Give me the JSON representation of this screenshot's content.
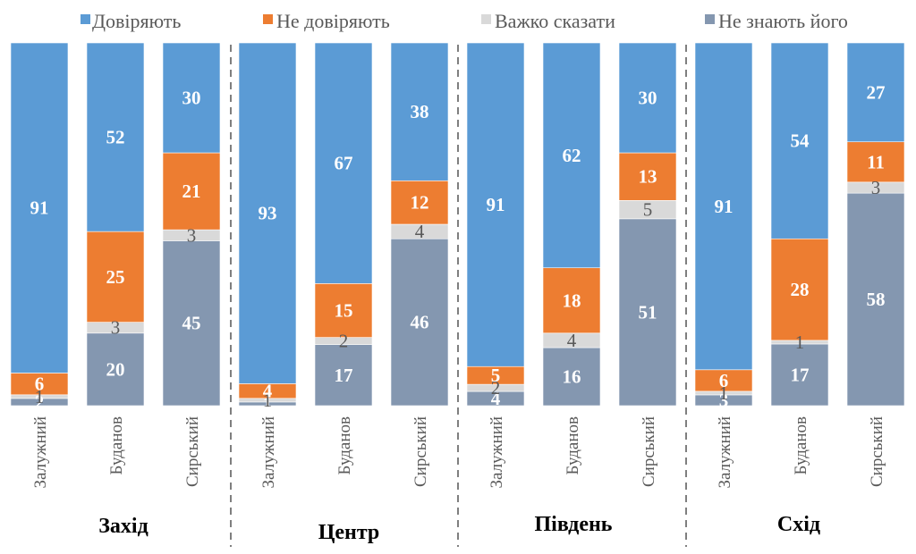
{
  "chart_data": {
    "type": "bar",
    "stacked": true,
    "stack_order_bottom_to_top": [
      "Не знають його",
      "Важко сказати",
      "Не довіряють",
      "Довіряють"
    ],
    "series": [
      {
        "name": "Довіряють",
        "color": "#5B9BD5"
      },
      {
        "name": "Не довіряють",
        "color": "#ED7D31"
      },
      {
        "name": "Важко сказати",
        "color": "#D9D9D9"
      },
      {
        "name": "Не знають його",
        "color": "#8497B0"
      }
    ],
    "legend_position": "top",
    "grid": false,
    "ylim": [
      0,
      100
    ],
    "groups": [
      {
        "region": "Захід",
        "bars": [
          {
            "category": "Залужний",
            "values": [
              91,
              6,
              1,
              2
            ]
          },
          {
            "category": "Буданов",
            "values": [
              52,
              25,
              3,
              20
            ]
          },
          {
            "category": "Сирський",
            "values": [
              30,
              21,
              3,
              45
            ]
          }
        ]
      },
      {
        "region": "Центр",
        "bars": [
          {
            "category": "Залужний",
            "values": [
              93,
              4,
              1,
              1
            ]
          },
          {
            "category": "Буданов",
            "values": [
              67,
              15,
              2,
              17
            ]
          },
          {
            "category": "Сирський",
            "values": [
              38,
              12,
              4,
              46
            ]
          }
        ]
      },
      {
        "region": "Південь",
        "bars": [
          {
            "category": "Залужний",
            "values": [
              91,
              5,
              2,
              4
            ]
          },
          {
            "category": "Буданов",
            "values": [
              62,
              18,
              4,
              16
            ]
          },
          {
            "category": "Сирський",
            "values": [
              30,
              13,
              5,
              51
            ]
          }
        ]
      },
      {
        "region": "Схід",
        "bars": [
          {
            "category": "Залужний",
            "values": [
              91,
              6,
              1,
              3
            ]
          },
          {
            "category": "Буданов",
            "values": [
              54,
              28,
              1,
              17
            ]
          },
          {
            "category": "Сирський",
            "values": [
              27,
              11,
              3,
              58
            ]
          }
        ]
      }
    ]
  }
}
